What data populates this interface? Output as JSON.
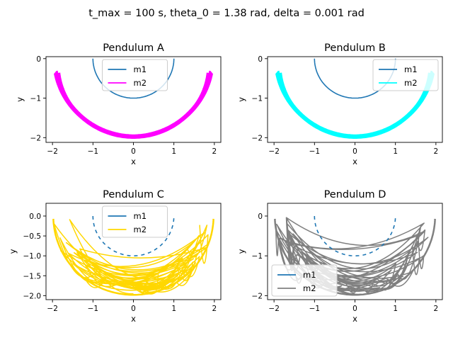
{
  "suptitle": "t_max = 100 s, theta_0 = 1.38 rad, delta = 0.001 rad",
  "colors": {
    "m1": "#1f77b4",
    "axes": "#000000"
  },
  "chart_data": [
    {
      "type": "line",
      "title": "Pendulum A",
      "xlabel": "x",
      "ylabel": "y",
      "xlim": [
        -2.16,
        2.16
      ],
      "ylim": [
        -2.12,
        0.05
      ],
      "xticks": [
        -2,
        -1,
        0,
        1,
        2
      ],
      "yticks": [
        -2,
        -1,
        0
      ],
      "legend": {
        "placement": "top-center"
      },
      "regime": "regular",
      "series": [
        {
          "name": "m1",
          "color": "#1f77b4",
          "role": "arc",
          "r": 1,
          "amp_deg": 90
        },
        {
          "name": "m2",
          "color": "#ff00ff",
          "role": "band",
          "amp_deg": 79
        }
      ]
    },
    {
      "type": "line",
      "title": "Pendulum B",
      "xlabel": "x",
      "ylabel": "y",
      "xlim": [
        -2.16,
        2.16
      ],
      "ylim": [
        -2.12,
        0.05
      ],
      "xticks": [
        -2,
        -1,
        0,
        1,
        2
      ],
      "yticks": [
        -2,
        -1,
        0
      ],
      "legend": {
        "placement": "top-right"
      },
      "regime": "regular",
      "series": [
        {
          "name": "m1",
          "color": "#1f77b4",
          "role": "arc",
          "r": 1,
          "amp_deg": 90
        },
        {
          "name": "m2",
          "color": "#00ffff",
          "role": "band",
          "amp_deg": 79
        }
      ]
    },
    {
      "type": "line",
      "title": "Pendulum C",
      "xlabel": "x",
      "ylabel": "y",
      "xlim": [
        -2.16,
        2.16
      ],
      "ylim": [
        -2.1,
        0.32
      ],
      "xticks": [
        -2,
        -1,
        0,
        1,
        2
      ],
      "yticks": [
        -2.0,
        -1.5,
        -1.0,
        -0.5,
        0.0
      ],
      "ytick_labels": [
        "−2.0",
        "−1.5",
        "−1.0",
        "−0.5",
        "0.0"
      ],
      "legend": {
        "placement": "top-center"
      },
      "regime": "chaotic",
      "series": [
        {
          "name": "m1",
          "color": "#1f77b4",
          "role": "arc",
          "r": 1,
          "amp_deg": 90
        },
        {
          "name": "m2",
          "color": "#ffd700",
          "role": "chaos",
          "seed": 7
        }
      ]
    },
    {
      "type": "line",
      "title": "Pendulum D",
      "xlabel": "x",
      "ylabel": "y",
      "xlim": [
        -2.16,
        2.16
      ],
      "ylim": [
        -2.1,
        0.32
      ],
      "xticks": [
        -2,
        -1,
        0,
        1,
        2
      ],
      "yticks": [
        -2,
        -1,
        0
      ],
      "legend": {
        "placement": "bottom-left"
      },
      "regime": "chaotic",
      "series": [
        {
          "name": "m1",
          "color": "#1f77b4",
          "role": "arc",
          "r": 1,
          "amp_deg": 90
        },
        {
          "name": "m2",
          "color": "#808080",
          "role": "chaos",
          "seed": 19
        }
      ]
    }
  ]
}
